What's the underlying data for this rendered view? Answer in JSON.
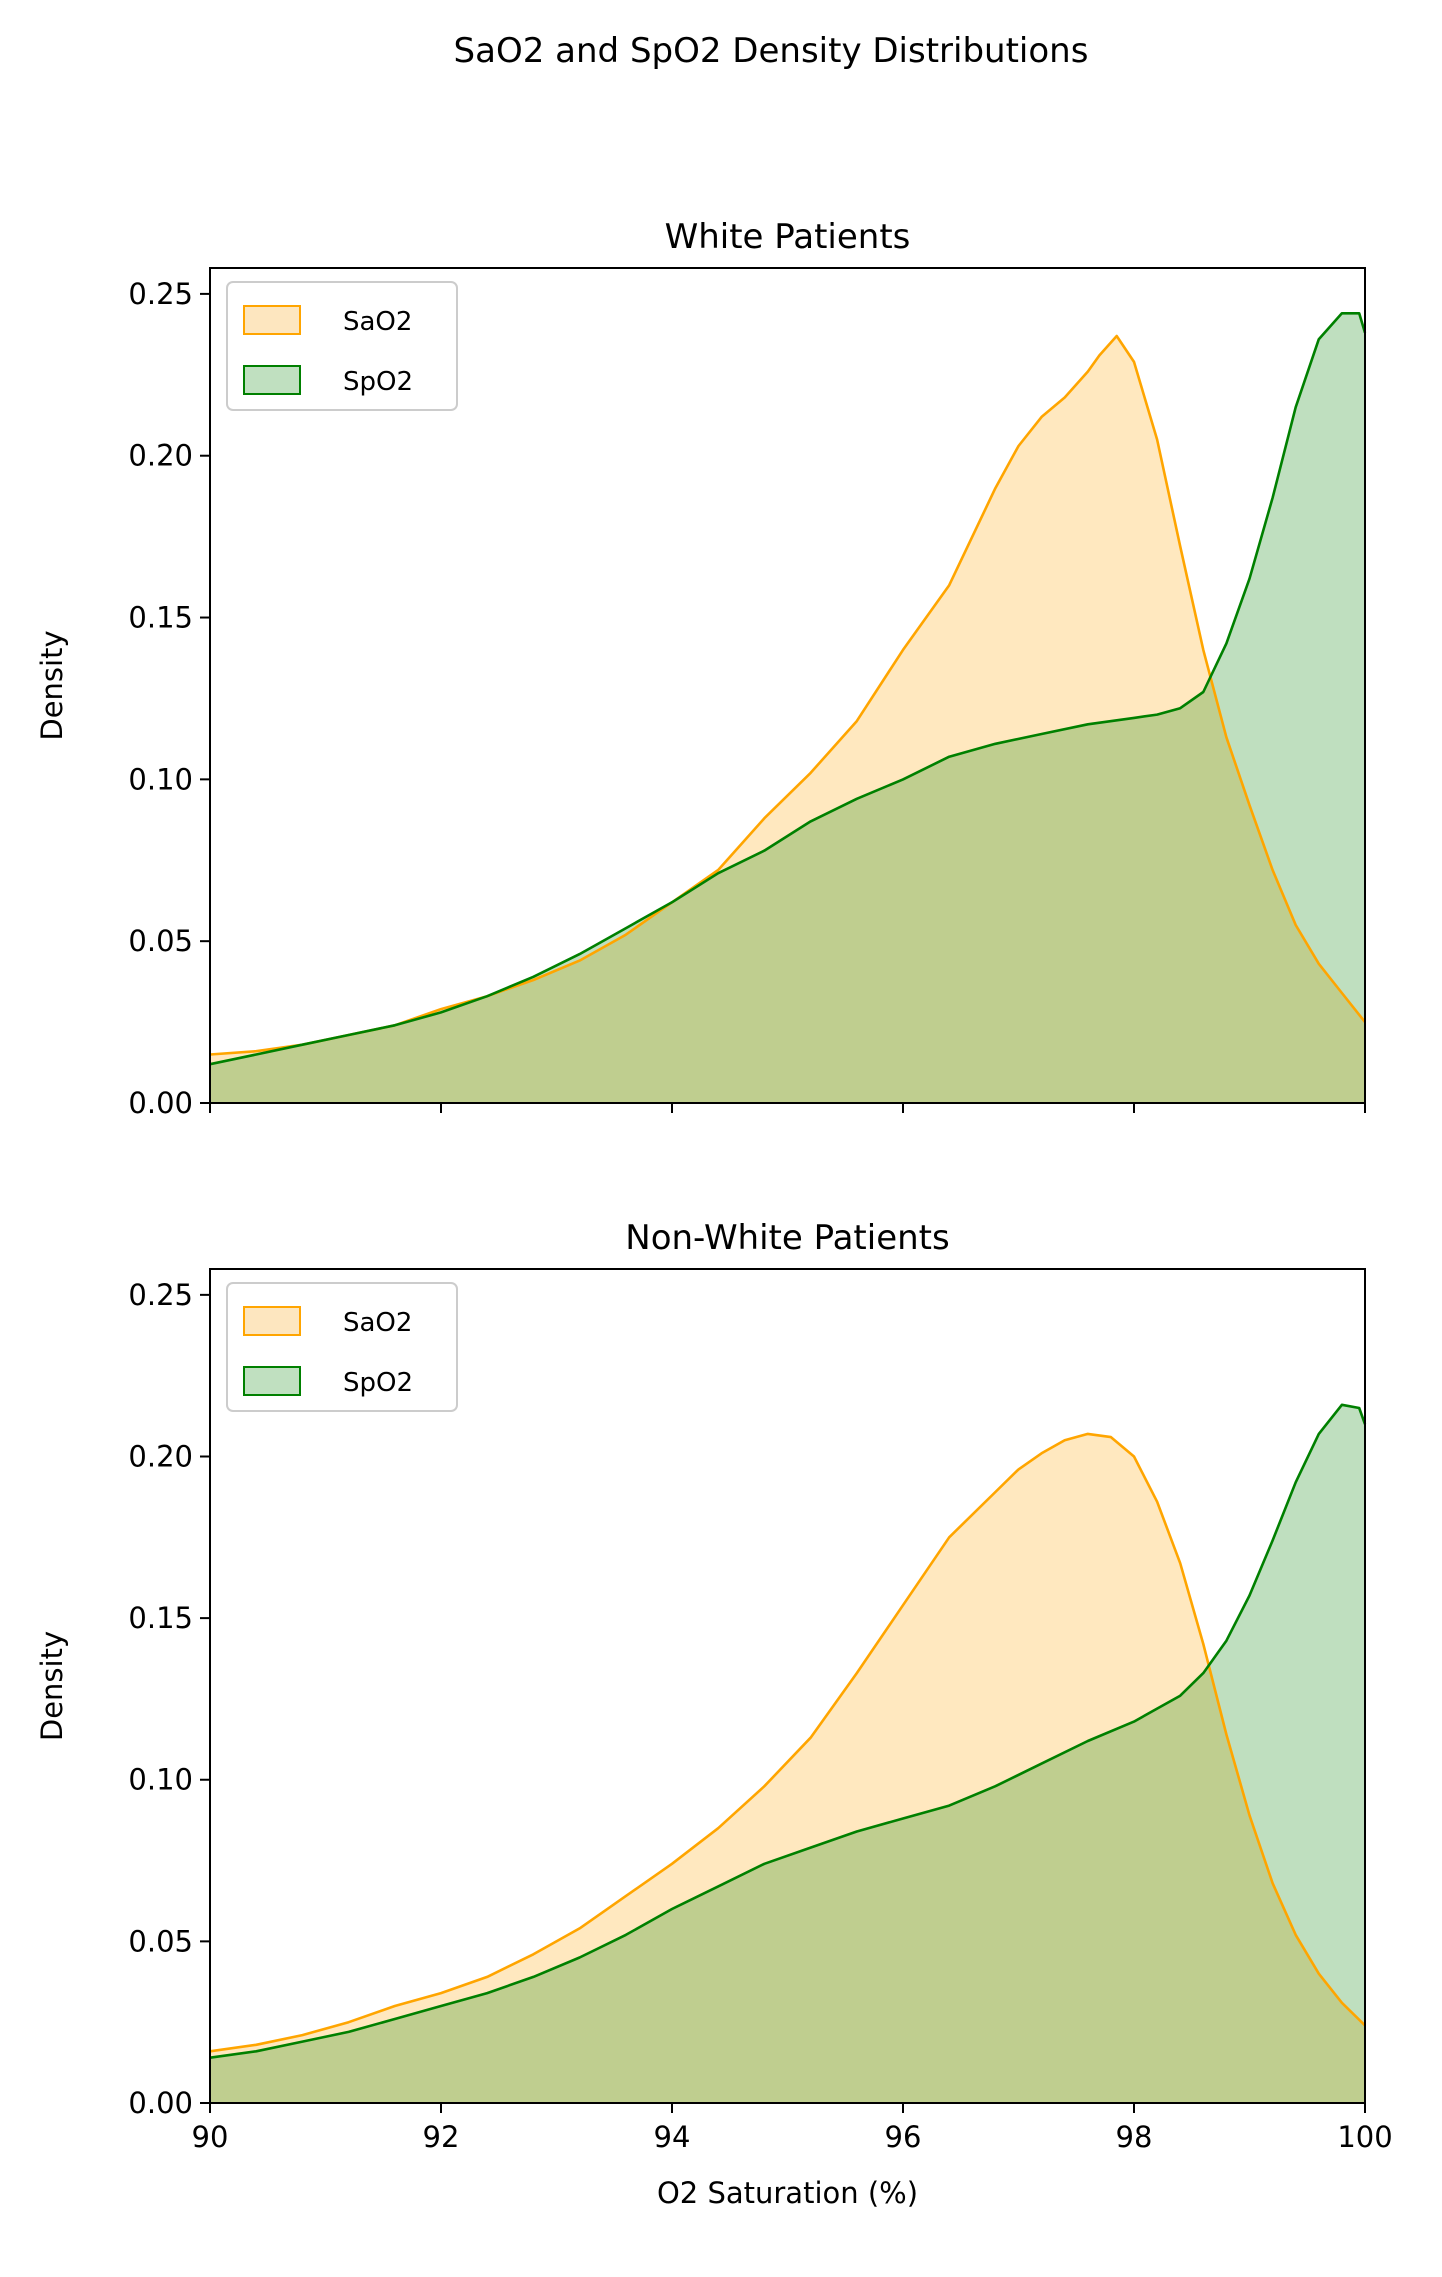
{
  "figure": {
    "suptitle": "SaO2 and SpO2 Density Distributions"
  },
  "colors": {
    "SaO2_line": "#FFA500",
    "SaO2_fill": "#FDE6BF",
    "SpO2_line": "#008000",
    "SpO2_fill": "#C0E0C0",
    "overlap_fill": "#BFCC90",
    "axes": "#000000",
    "background": "#ffffff"
  },
  "chart_data": [
    {
      "type": "area",
      "title": "White Patients",
      "xlabel": "",
      "ylabel": "Density",
      "xlim": [
        90,
        100
      ],
      "ylim": [
        0,
        0.258
      ],
      "xticks": [
        90,
        92,
        94,
        96,
        98,
        100
      ],
      "xtick_labels_visible": false,
      "yticks": [
        0.0,
        0.05,
        0.1,
        0.15,
        0.2,
        0.25
      ],
      "ytick_labels": [
        "0.00",
        "0.05",
        "0.10",
        "0.15",
        "0.20",
        "0.25"
      ],
      "legend": {
        "placement": "upper-left",
        "entries": [
          "SaO2",
          "SpO2"
        ]
      },
      "grid": false,
      "series": [
        {
          "name": "SaO2",
          "x": [
            90.0,
            90.4,
            90.8,
            91.2,
            91.6,
            92.0,
            92.4,
            92.8,
            93.2,
            93.6,
            94.0,
            94.4,
            94.8,
            95.2,
            95.6,
            96.0,
            96.4,
            96.8,
            97.0,
            97.2,
            97.4,
            97.6,
            97.7,
            97.85,
            98.0,
            98.2,
            98.4,
            98.6,
            98.8,
            99.0,
            99.2,
            99.4,
            99.6,
            99.8,
            100.0
          ],
          "values": [
            0.015,
            0.016,
            0.018,
            0.021,
            0.024,
            0.029,
            0.033,
            0.038,
            0.044,
            0.052,
            0.062,
            0.072,
            0.088,
            0.102,
            0.118,
            0.14,
            0.16,
            0.19,
            0.203,
            0.212,
            0.218,
            0.226,
            0.231,
            0.237,
            0.229,
            0.205,
            0.172,
            0.14,
            0.113,
            0.092,
            0.072,
            0.055,
            0.043,
            0.034,
            0.025
          ]
        },
        {
          "name": "SpO2",
          "x": [
            90.0,
            90.4,
            90.8,
            91.2,
            91.6,
            92.0,
            92.4,
            92.8,
            93.2,
            93.6,
            94.0,
            94.4,
            94.8,
            95.2,
            95.6,
            96.0,
            96.4,
            96.8,
            97.2,
            97.6,
            98.0,
            98.2,
            98.4,
            98.6,
            98.8,
            99.0,
            99.2,
            99.4,
            99.6,
            99.8,
            99.95,
            100.0
          ],
          "values": [
            0.012,
            0.015,
            0.018,
            0.021,
            0.024,
            0.028,
            0.033,
            0.039,
            0.046,
            0.054,
            0.062,
            0.071,
            0.078,
            0.087,
            0.094,
            0.1,
            0.107,
            0.111,
            0.114,
            0.117,
            0.119,
            0.12,
            0.122,
            0.127,
            0.142,
            0.162,
            0.187,
            0.215,
            0.236,
            0.244,
            0.244,
            0.238
          ]
        }
      ]
    },
    {
      "type": "area",
      "title": "Non-White Patients",
      "xlabel": "O2 Saturation (%)",
      "ylabel": "Density",
      "xlim": [
        90,
        100
      ],
      "ylim": [
        0,
        0.258
      ],
      "xticks": [
        90,
        92,
        94,
        96,
        98,
        100
      ],
      "xtick_labels": [
        "90",
        "92",
        "94",
        "96",
        "98",
        "100"
      ],
      "yticks": [
        0.0,
        0.05,
        0.1,
        0.15,
        0.2,
        0.25
      ],
      "ytick_labels": [
        "0.00",
        "0.05",
        "0.10",
        "0.15",
        "0.20",
        "0.25"
      ],
      "legend": {
        "placement": "upper-left",
        "entries": [
          "SaO2",
          "SpO2"
        ]
      },
      "grid": false,
      "series": [
        {
          "name": "SaO2",
          "x": [
            90.0,
            90.4,
            90.8,
            91.2,
            91.6,
            92.0,
            92.4,
            92.8,
            93.2,
            93.6,
            94.0,
            94.4,
            94.8,
            95.2,
            95.6,
            96.0,
            96.4,
            96.8,
            97.0,
            97.2,
            97.4,
            97.6,
            97.8,
            98.0,
            98.2,
            98.4,
            98.6,
            98.8,
            99.0,
            99.2,
            99.4,
            99.6,
            99.8,
            100.0
          ],
          "values": [
            0.016,
            0.018,
            0.021,
            0.025,
            0.03,
            0.034,
            0.039,
            0.046,
            0.054,
            0.064,
            0.074,
            0.085,
            0.098,
            0.113,
            0.133,
            0.154,
            0.175,
            0.189,
            0.196,
            0.201,
            0.205,
            0.207,
            0.206,
            0.2,
            0.186,
            0.167,
            0.142,
            0.114,
            0.089,
            0.068,
            0.052,
            0.04,
            0.031,
            0.024
          ]
        },
        {
          "name": "SpO2",
          "x": [
            90.0,
            90.4,
            90.8,
            91.2,
            91.6,
            92.0,
            92.4,
            92.8,
            93.2,
            93.6,
            94.0,
            94.4,
            94.8,
            95.2,
            95.6,
            96.0,
            96.4,
            96.8,
            97.2,
            97.6,
            98.0,
            98.2,
            98.4,
            98.6,
            98.8,
            99.0,
            99.2,
            99.4,
            99.6,
            99.8,
            99.95,
            100.0
          ],
          "values": [
            0.014,
            0.016,
            0.019,
            0.022,
            0.026,
            0.03,
            0.034,
            0.039,
            0.045,
            0.052,
            0.06,
            0.067,
            0.074,
            0.079,
            0.084,
            0.088,
            0.092,
            0.098,
            0.105,
            0.112,
            0.118,
            0.122,
            0.126,
            0.133,
            0.143,
            0.157,
            0.174,
            0.192,
            0.207,
            0.216,
            0.215,
            0.21
          ]
        }
      ]
    }
  ]
}
